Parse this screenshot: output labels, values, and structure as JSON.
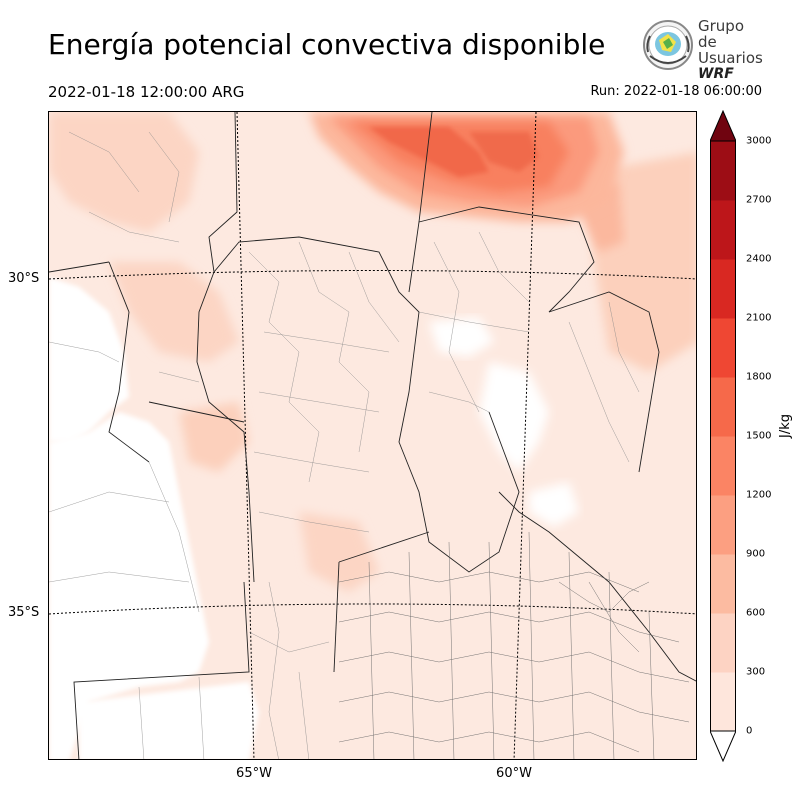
{
  "header": {
    "title": "Energía potencial convectiva disponible",
    "valid_time": "2022-01-18 12:00:00 ARG",
    "run_time": "Run: 2022-01-18 06:00:00"
  },
  "logo": {
    "line1": "Grupo de",
    "line2": "Usuarios",
    "line3": "WRF"
  },
  "map": {
    "latitude_labels": [
      "30°S",
      "35°S"
    ],
    "longitude_labels": [
      "65°W",
      "60°W"
    ]
  },
  "colorbar": {
    "unit": "J/kg",
    "ticks": [
      "0",
      "300",
      "600",
      "900",
      "1200",
      "1500",
      "1800",
      "2100",
      "2400",
      "2700",
      "3000"
    ],
    "colors": [
      "#fee6dc",
      "#fdd3c3",
      "#fcbba1",
      "#fc9f81",
      "#fb8464",
      "#f6694a",
      "#ef4733",
      "#d92822",
      "#bd161a",
      "#9d0d15",
      "#700410"
    ]
  }
}
